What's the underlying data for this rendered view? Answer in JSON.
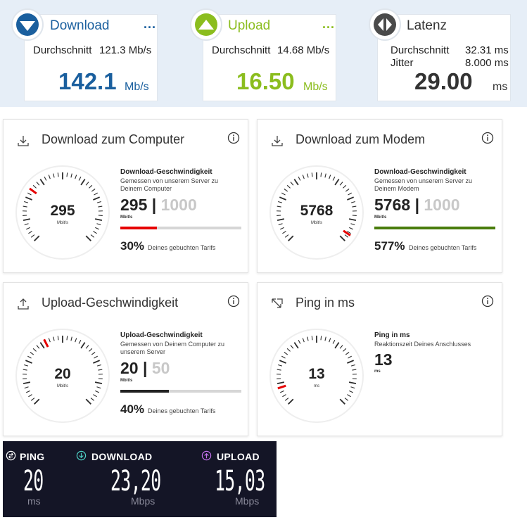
{
  "summary": {
    "download": {
      "title": "Download",
      "menu": "...",
      "avg_label": "Durchschnitt",
      "avg_value": "121.3 Mb/s",
      "value": "142.1",
      "unit": "Mb/s",
      "color": "#1a5f9e"
    },
    "upload": {
      "title": "Upload",
      "menu": "...",
      "avg_label": "Durchschnitt",
      "avg_value": "14.68 Mb/s",
      "value": "16.50",
      "unit": "Mb/s",
      "color": "#8bbd1e"
    },
    "latency": {
      "title": "Latenz",
      "avg_label": "Durchschnitt",
      "avg_value": "32.31 ms",
      "jitter_label": "Jitter",
      "jitter_value": "8.000 ms",
      "value": "29.00",
      "unit": "ms"
    }
  },
  "panels": {
    "dl_computer": {
      "title": "Download zum Computer",
      "gauge_value": "295",
      "gauge_unit": "Mbit/s",
      "label": "Download-Geschwindigkeit",
      "description": "Gemessen von unserem Server zu Deinem Computer",
      "value": "295",
      "separator": "|",
      "max": "1000",
      "unit": "Mbit/s",
      "percent": "30%",
      "percent_text": "Deines gebuchten Tarifs",
      "fill_fraction": 0.3,
      "fill_color": "#e60000",
      "needle_fraction": 0.3
    },
    "dl_modem": {
      "title": "Download zum Modem",
      "gauge_value": "5768",
      "gauge_unit": "Mbit/s",
      "label": "Download-Geschwindigkeit",
      "description": "Gemessen von unserem Server zu Deinem Modem",
      "value": "5768",
      "separator": "|",
      "max": "1000",
      "unit": "Mbit/s",
      "percent": "577%",
      "percent_text": "Deines gebuchten Tarifs",
      "fill_fraction": 1.0,
      "fill_color": "#4a7d0c",
      "needle_fraction": 0.96
    },
    "upload": {
      "title": "Upload-Geschwindigkeit",
      "gauge_value": "20",
      "gauge_unit": "Mbit/s",
      "label": "Upload-Geschwindigkeit",
      "description": "Gemessen von Deinem Computer zu unserem Server",
      "value": "20",
      "separator": "|",
      "max": "50",
      "unit": "Mbit/s",
      "percent": "40%",
      "percent_text": "Deines gebuchten Tarifs",
      "fill_fraction": 0.4,
      "fill_color": "#222222",
      "needle_fraction": 0.4
    },
    "ping": {
      "title": "Ping in ms",
      "gauge_value": "13",
      "gauge_unit": "ms",
      "label": "Ping in ms",
      "description": "Reaktionszeit Deines Anschlusses",
      "value": "13",
      "unit": "ms",
      "needle_fraction": 0.1
    }
  },
  "speedtest": {
    "ping": {
      "label": "PING",
      "value": "20",
      "unit": "ms"
    },
    "download": {
      "label": "DOWNLOAD",
      "value": "23,20",
      "unit": "Mbps"
    },
    "upload": {
      "label": "UPLOAD",
      "value": "15,03",
      "unit": "Mbps"
    }
  },
  "colors": {
    "vodafone_red": "#e60000",
    "download_blue": "#1a5f9e",
    "upload_green": "#8bbd1e",
    "dark_bg": "#141526"
  }
}
